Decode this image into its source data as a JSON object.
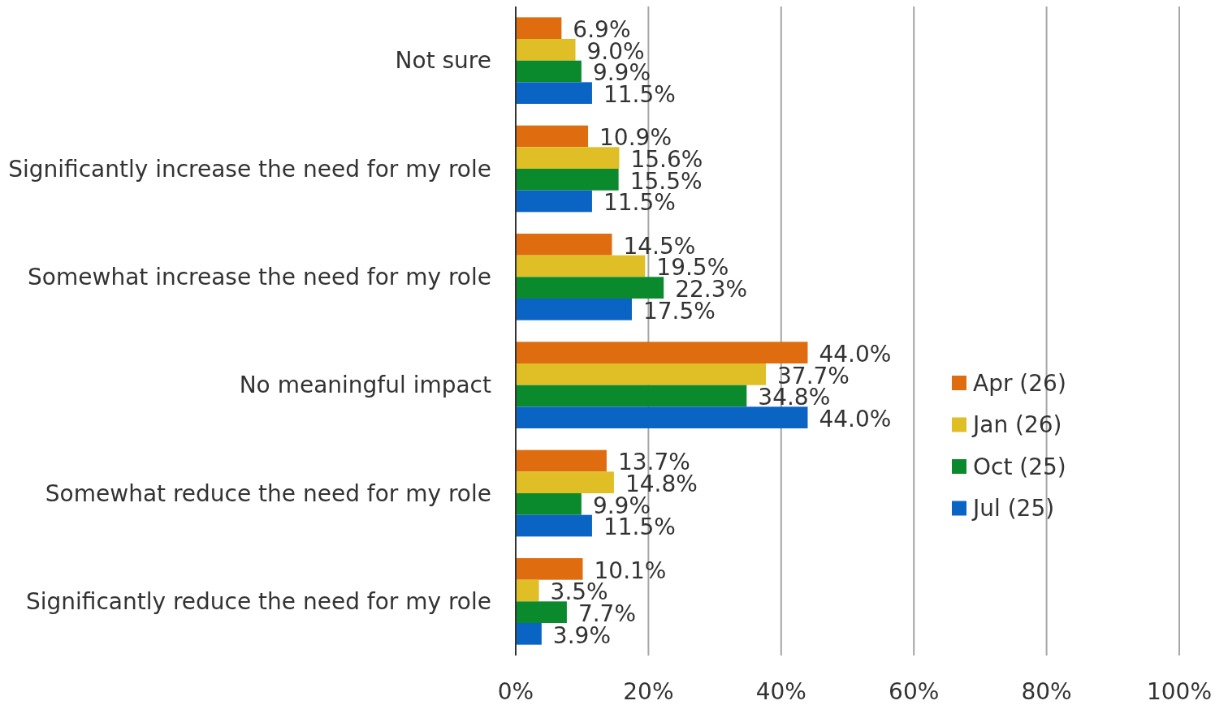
{
  "chart_data": {
    "type": "bar",
    "orientation": "horizontal",
    "categories": [
      "Not sure",
      "Significantly increase the need for my role",
      "Somewhat increase the need for my role",
      "No meaningful impact",
      "Somewhat reduce the need for my role",
      "Significantly reduce the need for my role"
    ],
    "series": [
      {
        "name": "Apr (26)",
        "color": "#e06c10",
        "values": [
          6.9,
          10.9,
          14.5,
          44.0,
          13.7,
          10.1
        ],
        "value_labels": [
          "6.9%",
          "10.9%",
          "14.5%",
          "44.0%",
          "13.7%",
          "10.1%"
        ]
      },
      {
        "name": "Jan (26)",
        "color": "#dfbf25",
        "values": [
          9.0,
          15.6,
          19.5,
          37.7,
          14.8,
          3.5
        ],
        "value_labels": [
          "9.0%",
          "15.6%",
          "19.5%",
          "37.7%",
          "14.8%",
          "3.5%"
        ]
      },
      {
        "name": "Oct (25)",
        "color": "#0a8a2d",
        "values": [
          9.9,
          15.5,
          22.3,
          34.8,
          9.9,
          7.7
        ],
        "value_labels": [
          "9.9%",
          "15.5%",
          "22.3%",
          "34.8%",
          "9.9%",
          "7.7%"
        ]
      },
      {
        "name": "Jul (25)",
        "color": "#0a64c4",
        "values": [
          11.5,
          11.5,
          17.5,
          44.0,
          11.5,
          3.9
        ],
        "value_labels": [
          "11.5%",
          "11.5%",
          "17.5%",
          "44.0%",
          "11.5%",
          "3.9%"
        ]
      }
    ],
    "xlim": [
      0,
      100
    ],
    "xticks": [
      {
        "value": 0,
        "label": "0%"
      },
      {
        "value": 20,
        "label": "20%"
      },
      {
        "value": 40,
        "label": "40%"
      },
      {
        "value": 60,
        "label": "60%"
      },
      {
        "value": 80,
        "label": "80%"
      },
      {
        "value": 100,
        "label": "100%"
      }
    ],
    "grid": "x",
    "legend": "right"
  }
}
